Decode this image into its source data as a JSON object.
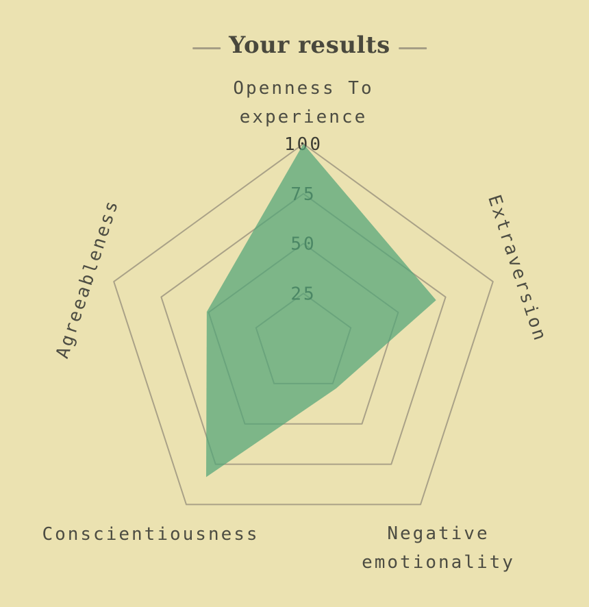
{
  "header": {
    "title": "Your results"
  },
  "chart_data": {
    "type": "radar",
    "title": "Your results",
    "max": 100,
    "scale_ticks": [
      25,
      50,
      75,
      100
    ],
    "axes": [
      {
        "label": "Openness To experience",
        "value": 100
      },
      {
        "label": "Extraversion",
        "value": 70
      },
      {
        "label": "Negative emotionality",
        "value": 28
      },
      {
        "label": "Conscientiousness",
        "value": 83
      },
      {
        "label": "Agreeableness",
        "value": 51
      }
    ],
    "legend": "none",
    "grid": "concentric-pentagons",
    "colors": {
      "background": "#ebe2b1",
      "grid": "#a9a187",
      "tick_text": "#3c3c33",
      "axis_text": "#4c4c42",
      "title_text": "#49483d",
      "fill": "#52a579",
      "fill_opacity": 0.72
    }
  }
}
